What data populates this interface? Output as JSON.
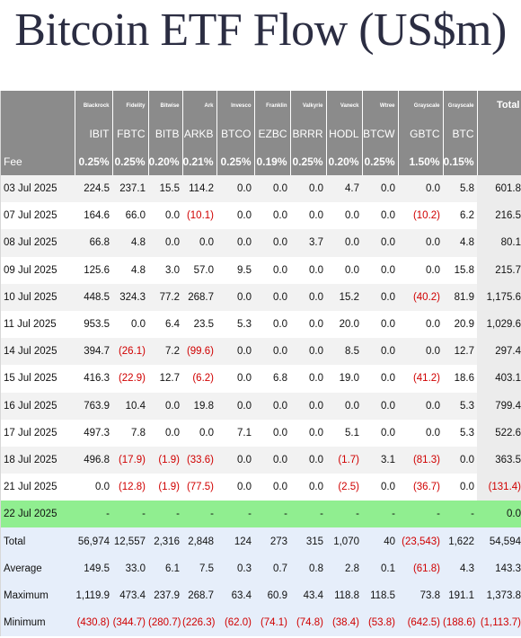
{
  "title": "Bitcoin ETF Flow (US$m)",
  "issuers": [
    "Blackrock",
    "Fidelity",
    "Bitwise",
    "Ark",
    "Invesco",
    "Franklin",
    "Valkyrie",
    "Vaneck",
    "Wtree",
    "Grayscale",
    "Grayscale"
  ],
  "tickers": [
    "IBIT",
    "FBTC",
    "BITB",
    "ARKB",
    "BTCO",
    "EZBC",
    "BRRR",
    "HODL",
    "BTCW",
    "GBTC",
    "BTC"
  ],
  "total_label": "Total",
  "fee_label": "Fee",
  "fees": [
    "0.25%",
    "0.25%",
    "0.20%",
    "0.21%",
    "0.25%",
    "0.19%",
    "0.25%",
    "0.20%",
    "0.25%",
    "1.50%",
    "0.15%"
  ],
  "colors": {
    "header_bg": "#8b8b8b",
    "negative": "#d00000",
    "highlight": "#90ee90",
    "stats_bg": "#e6eefa"
  },
  "rows": [
    {
      "date": "03 Jul 2025",
      "values": [
        "224.5",
        "237.1",
        "15.5",
        "114.2",
        "0.0",
        "0.0",
        "0.0",
        "4.7",
        "0.0",
        "0.0",
        "5.8"
      ],
      "total": "601.8"
    },
    {
      "date": "07 Jul 2025",
      "values": [
        "164.6",
        "66.0",
        "0.0",
        "(10.1)",
        "0.0",
        "0.0",
        "0.0",
        "0.0",
        "0.0",
        "(10.2)",
        "6.2"
      ],
      "total": "216.5"
    },
    {
      "date": "08 Jul 2025",
      "values": [
        "66.8",
        "4.8",
        "0.0",
        "0.0",
        "0.0",
        "0.0",
        "3.7",
        "0.0",
        "0.0",
        "0.0",
        "4.8"
      ],
      "total": "80.1"
    },
    {
      "date": "09 Jul 2025",
      "values": [
        "125.6",
        "4.8",
        "3.0",
        "57.0",
        "9.5",
        "0.0",
        "0.0",
        "0.0",
        "0.0",
        "0.0",
        "15.8"
      ],
      "total": "215.7"
    },
    {
      "date": "10 Jul 2025",
      "values": [
        "448.5",
        "324.3",
        "77.2",
        "268.7",
        "0.0",
        "0.0",
        "0.0",
        "15.2",
        "0.0",
        "(40.2)",
        "81.9"
      ],
      "total": "1,175.6"
    },
    {
      "date": "11 Jul 2025",
      "values": [
        "953.5",
        "0.0",
        "6.4",
        "23.5",
        "5.3",
        "0.0",
        "0.0",
        "20.0",
        "0.0",
        "0.0",
        "20.9"
      ],
      "total": "1,029.6"
    },
    {
      "date": "14 Jul 2025",
      "values": [
        "394.7",
        "(26.1)",
        "7.2",
        "(99.6)",
        "0.0",
        "0.0",
        "0.0",
        "8.5",
        "0.0",
        "0.0",
        "12.7"
      ],
      "total": "297.4"
    },
    {
      "date": "15 Jul 2025",
      "values": [
        "416.3",
        "(22.9)",
        "12.7",
        "(6.2)",
        "0.0",
        "6.8",
        "0.0",
        "19.0",
        "0.0",
        "(41.2)",
        "18.6"
      ],
      "total": "403.1"
    },
    {
      "date": "16 Jul 2025",
      "values": [
        "763.9",
        "10.4",
        "0.0",
        "19.8",
        "0.0",
        "0.0",
        "0.0",
        "0.0",
        "0.0",
        "0.0",
        "5.3"
      ],
      "total": "799.4"
    },
    {
      "date": "17 Jul 2025",
      "values": [
        "497.3",
        "7.8",
        "0.0",
        "0.0",
        "7.1",
        "0.0",
        "0.0",
        "5.1",
        "0.0",
        "0.0",
        "5.3"
      ],
      "total": "522.6"
    },
    {
      "date": "18 Jul 2025",
      "values": [
        "496.8",
        "(17.9)",
        "(1.9)",
        "(33.6)",
        "0.0",
        "0.0",
        "0.0",
        "(1.7)",
        "3.1",
        "(81.3)",
        "0.0"
      ],
      "total": "363.5"
    },
    {
      "date": "21 Jul 2025",
      "values": [
        "0.0",
        "(12.8)",
        "(1.9)",
        "(77.5)",
        "0.0",
        "0.0",
        "0.0",
        "(2.5)",
        "0.0",
        "(36.7)",
        "0.0"
      ],
      "total": "(131.4)"
    },
    {
      "date": "22 Jul 2025",
      "values": [
        "-",
        "-",
        "-",
        "-",
        "-",
        "-",
        "-",
        "-",
        "-",
        "-",
        "-"
      ],
      "total": "0.0",
      "highlight": true
    }
  ],
  "stats": [
    {
      "label": "Total",
      "values": [
        "56,974",
        "12,557",
        "2,316",
        "2,848",
        "124",
        "273",
        "315",
        "1,070",
        "40",
        "(23,543)",
        "1,622"
      ],
      "total": "54,594"
    },
    {
      "label": "Average",
      "values": [
        "149.5",
        "33.0",
        "6.1",
        "7.5",
        "0.3",
        "0.7",
        "0.8",
        "2.8",
        "0.1",
        "(61.8)",
        "4.3"
      ],
      "total": "143.3"
    },
    {
      "label": "Maximum",
      "values": [
        "1,119.9",
        "473.4",
        "237.9",
        "268.7",
        "63.4",
        "60.9",
        "43.4",
        "118.8",
        "118.5",
        "73.8",
        "191.1"
      ],
      "total": "1,373.8"
    },
    {
      "label": "Minimum",
      "values": [
        "(430.8)",
        "(344.7)",
        "(280.7)",
        "(226.3)",
        "(62.0)",
        "(74.1)",
        "(74.8)",
        "(38.4)",
        "(53.8)",
        "(642.5)",
        "(188.6)"
      ],
      "total": "(1,113.7)"
    }
  ]
}
